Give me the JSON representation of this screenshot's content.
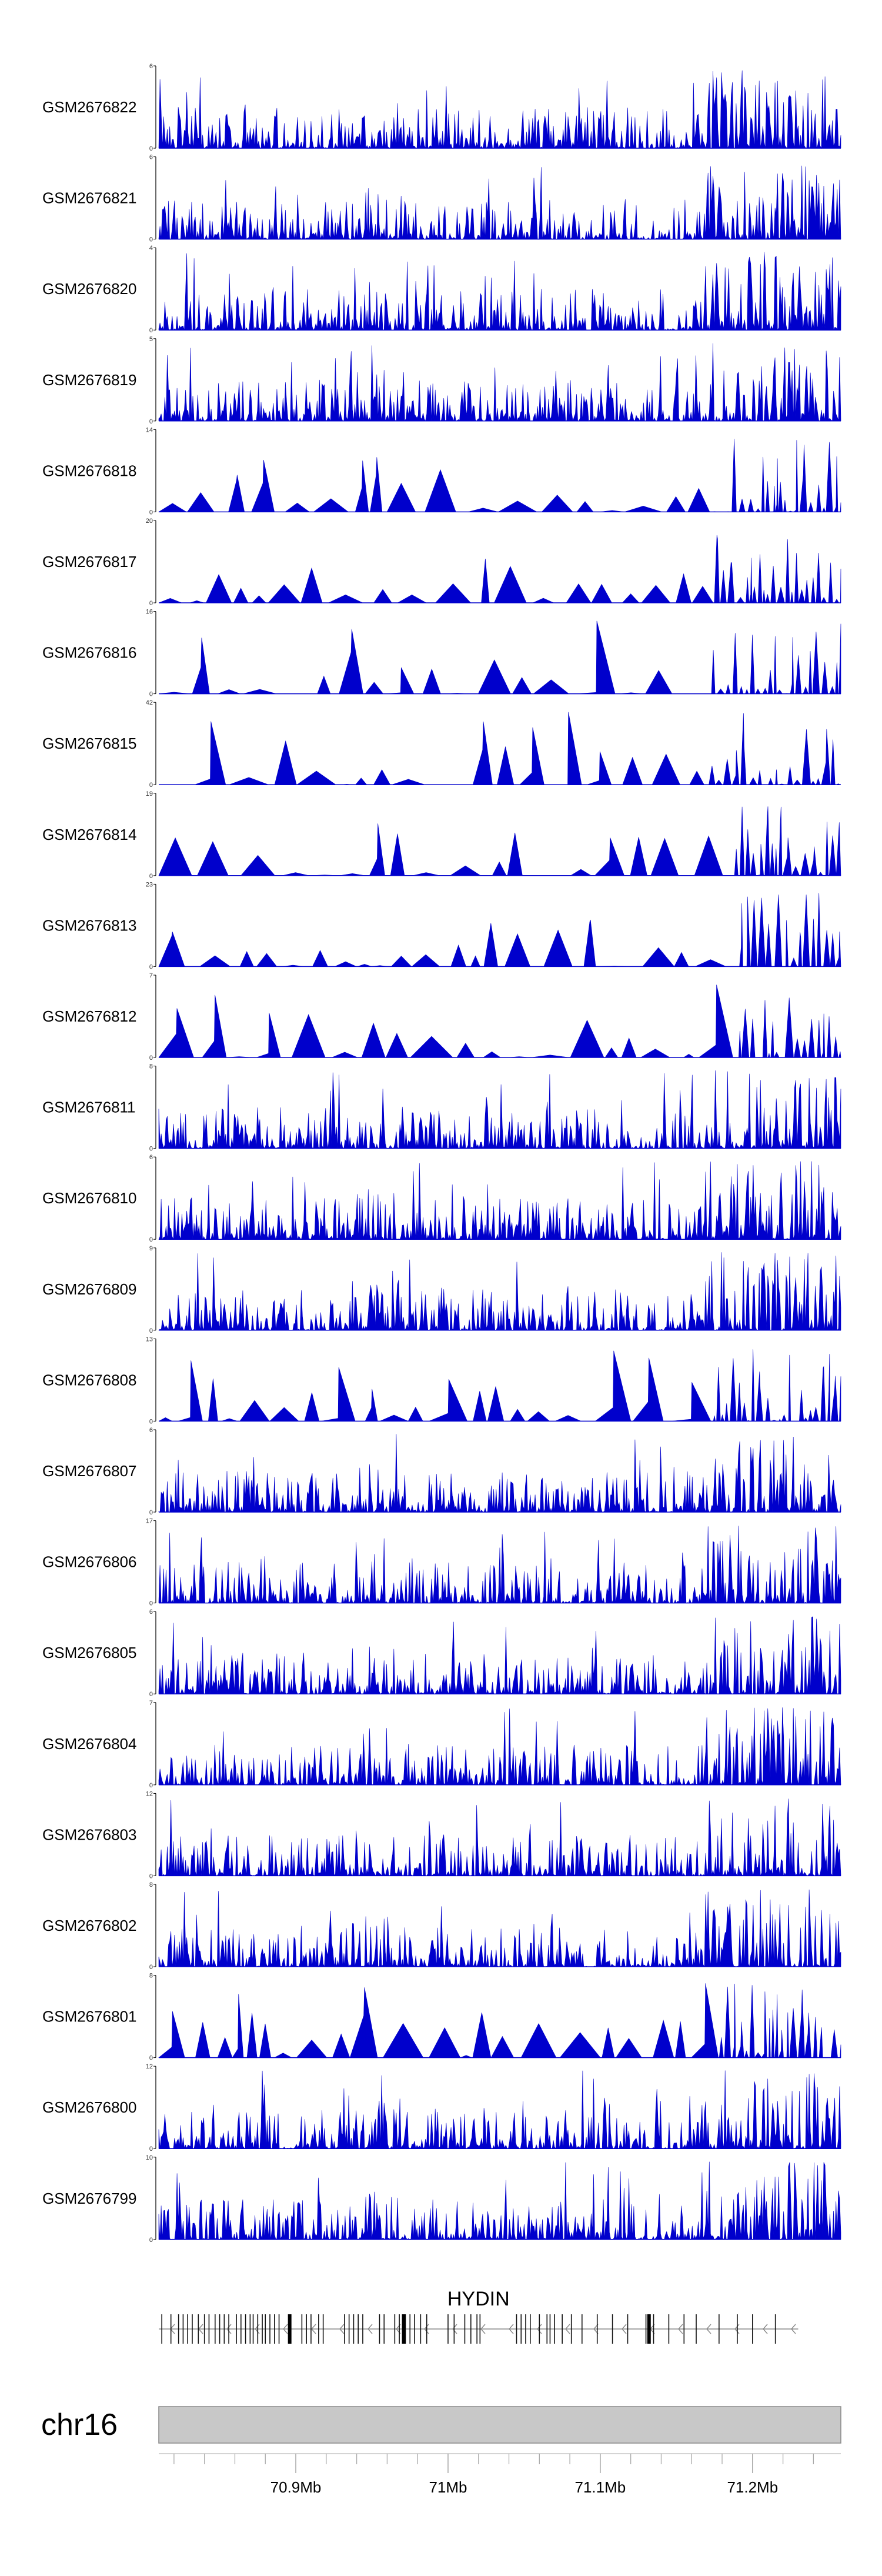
{
  "chart_data": {
    "type": "area",
    "title": "",
    "series_color": "#0000cc",
    "tracks": [
      {
        "name": "GSM2676822",
        "ymax": 6,
        "ymin": 0,
        "density": "dense",
        "seed": 11
      },
      {
        "name": "GSM2676821",
        "ymax": 6,
        "ymin": 0,
        "density": "dense",
        "seed": 12
      },
      {
        "name": "GSM2676820",
        "ymax": 4,
        "ymin": 0,
        "density": "dense",
        "seed": 13
      },
      {
        "name": "GSM2676819",
        "ymax": 5,
        "ymin": 0,
        "density": "dense",
        "seed": 14
      },
      {
        "name": "GSM2676818",
        "ymax": 14,
        "ymin": 0,
        "density": "sparse",
        "seed": 15
      },
      {
        "name": "GSM2676817",
        "ymax": 20,
        "ymin": 0,
        "density": "sparse",
        "seed": 16
      },
      {
        "name": "GSM2676816",
        "ymax": 16,
        "ymin": 0,
        "density": "sparse",
        "seed": 17
      },
      {
        "name": "GSM2676815",
        "ymax": 42,
        "ymin": 0,
        "density": "sparse",
        "seed": 18
      },
      {
        "name": "GSM2676814",
        "ymax": 19,
        "ymin": 0,
        "density": "sparse",
        "seed": 19
      },
      {
        "name": "GSM2676813",
        "ymax": 23,
        "ymin": 0,
        "density": "sparse",
        "seed": 20
      },
      {
        "name": "GSM2676812",
        "ymax": 7,
        "ymin": 0,
        "density": "sparse",
        "seed": 21
      },
      {
        "name": "GSM2676811",
        "ymax": 8,
        "ymin": 0,
        "density": "dense",
        "seed": 22
      },
      {
        "name": "GSM2676810",
        "ymax": 6,
        "ymin": 0,
        "density": "dense",
        "seed": 23
      },
      {
        "name": "GSM2676809",
        "ymax": 9,
        "ymin": 0,
        "density": "dense",
        "seed": 24
      },
      {
        "name": "GSM2676808",
        "ymax": 13,
        "ymin": 0,
        "density": "sparse",
        "seed": 25
      },
      {
        "name": "GSM2676807",
        "ymax": 6,
        "ymin": 0,
        "density": "dense",
        "seed": 26
      },
      {
        "name": "GSM2676806",
        "ymax": 17,
        "ymin": 0,
        "density": "dense",
        "seed": 27
      },
      {
        "name": "GSM2676805",
        "ymax": 6,
        "ymin": 0,
        "density": "dense",
        "seed": 28
      },
      {
        "name": "GSM2676804",
        "ymax": 7,
        "ymin": 0,
        "density": "dense",
        "seed": 29
      },
      {
        "name": "GSM2676803",
        "ymax": 12,
        "ymin": 0,
        "density": "dense",
        "seed": 30
      },
      {
        "name": "GSM2676802",
        "ymax": 8,
        "ymin": 0,
        "density": "dense",
        "seed": 31
      },
      {
        "name": "GSM2676801",
        "ymax": 8,
        "ymin": 0,
        "density": "sparse",
        "seed": 32
      },
      {
        "name": "GSM2676800",
        "ymax": 12,
        "ymin": 0,
        "density": "dense",
        "seed": 33
      },
      {
        "name": "GSM2676799",
        "ymax": 10,
        "ymin": 0,
        "density": "dense",
        "seed": 34
      }
    ],
    "gene": {
      "name": "HYDIN",
      "strand": "-",
      "start_mb": 70.81,
      "end_mb": 71.23,
      "exons_mb": [
        70.812,
        70.818,
        70.823,
        70.826,
        70.829,
        70.832,
        70.836,
        70.84,
        70.843,
        70.847,
        70.85,
        70.853,
        70.856,
        70.861,
        70.864,
        70.867,
        70.87,
        70.872,
        70.875,
        70.878,
        70.88,
        70.883,
        70.886,
        70.889,
        70.904,
        70.907,
        70.91,
        70.915,
        70.918,
        70.932,
        70.935,
        70.938,
        70.941,
        70.944,
        70.955,
        70.958,
        70.965,
        70.968,
        70.97,
        70.972,
        70.975,
        70.978,
        70.982,
        70.986,
        71.0,
        71.004,
        71.011,
        71.015,
        71.019,
        71.021,
        71.045,
        71.048,
        71.051,
        71.054,
        71.06,
        71.065,
        71.067,
        71.07,
        71.075,
        71.081,
        71.088,
        71.098,
        71.108,
        71.118,
        71.13,
        71.132,
        71.135,
        71.145,
        71.155,
        71.163,
        71.178,
        71.19,
        71.2,
        71.215
      ],
      "thick_exons_mb": [
        70.896,
        70.971,
        71.132
      ]
    },
    "chromosome": "chr16",
    "x_axis": {
      "min_mb": 70.81,
      "max_mb": 71.258,
      "tick_labels": [
        "70.9Mb",
        "71Mb",
        "71.1Mb",
        "71.2Mb"
      ],
      "major_ticks_mb": [
        70.9,
        71.0,
        71.1,
        71.2
      ],
      "minor_ticks_mb": [
        70.82,
        70.84,
        70.86,
        70.88,
        70.92,
        70.94,
        70.96,
        70.98,
        71.02,
        71.04,
        71.06,
        71.08,
        71.12,
        71.14,
        71.16,
        71.18,
        71.22,
        71.24
      ]
    }
  }
}
